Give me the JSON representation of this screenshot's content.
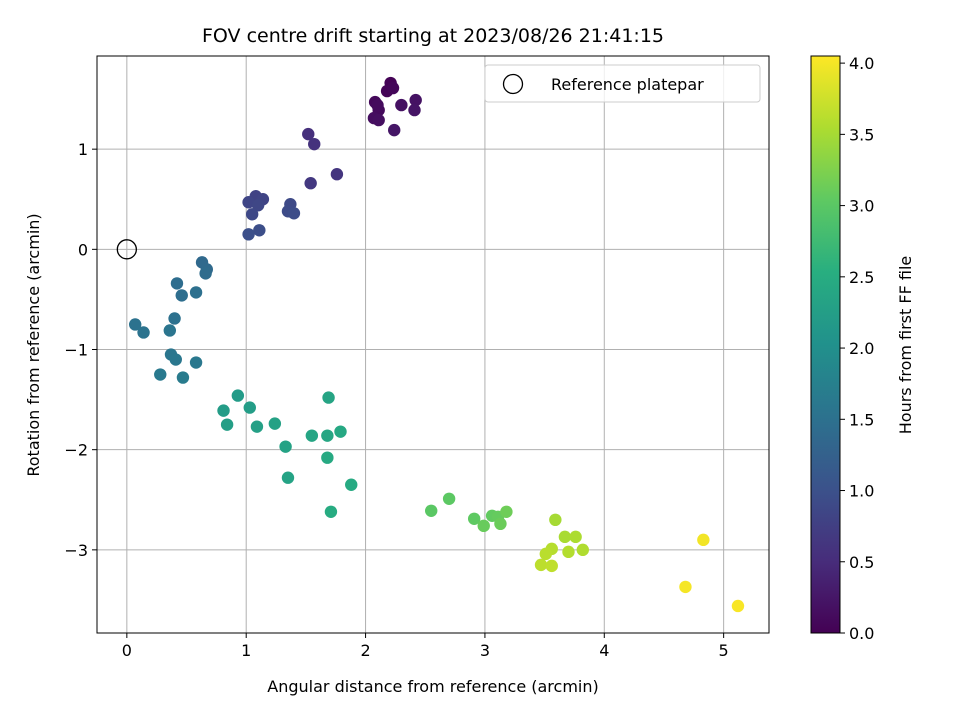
{
  "chart_data": {
    "type": "scatter",
    "title": "FOV centre drift starting at 2023/08/26 21:41:15",
    "xlabel": "Angular distance from reference (arcmin)",
    "ylabel": "Rotation from reference (arcmin)",
    "xlim": [
      -0.25,
      5.38
    ],
    "ylim": [
      -3.83,
      1.93
    ],
    "xticks": [
      0,
      1,
      2,
      3,
      4,
      5
    ],
    "xtick_labels": [
      "0",
      "1",
      "2",
      "3",
      "4",
      "5"
    ],
    "yticks": [
      1,
      0,
      -1,
      -2,
      -3
    ],
    "ytick_labels": [
      "1",
      "0",
      "−1",
      "−2",
      "−3"
    ],
    "grid": true,
    "legend": {
      "position": "top-right",
      "entries": [
        "Reference platepar"
      ]
    },
    "colorbar": {
      "label": "Hours from first FF file",
      "range": [
        0,
        4.05
      ],
      "ticks": [
        0,
        0.5,
        1,
        1.5,
        2,
        2.5,
        3,
        3.5,
        4
      ],
      "tick_labels": [
        "0.0",
        "0.5",
        "1.0",
        "1.5",
        "2.0",
        "2.5",
        "3.0",
        "3.5",
        "4.0"
      ],
      "colormap": "viridis"
    },
    "reference": {
      "x": 0,
      "y": 0
    },
    "points": [
      {
        "x": 2.21,
        "y": 1.66,
        "h": 0.02
      },
      {
        "x": 2.18,
        "y": 1.58,
        "h": 0.04
      },
      {
        "x": 2.23,
        "y": 1.61,
        "h": 0.06
      },
      {
        "x": 2.08,
        "y": 1.47,
        "h": 0.08
      },
      {
        "x": 2.11,
        "y": 1.39,
        "h": 0.1
      },
      {
        "x": 2.1,
        "y": 1.44,
        "h": 0.12
      },
      {
        "x": 2.07,
        "y": 1.31,
        "h": 0.14
      },
      {
        "x": 2.11,
        "y": 1.29,
        "h": 0.16
      },
      {
        "x": 2.3,
        "y": 1.44,
        "h": 0.18
      },
      {
        "x": 2.42,
        "y": 1.49,
        "h": 0.2
      },
      {
        "x": 2.41,
        "y": 1.39,
        "h": 0.22
      },
      {
        "x": 2.24,
        "y": 1.19,
        "h": 0.24
      },
      {
        "x": 1.52,
        "y": 1.15,
        "h": 0.55
      },
      {
        "x": 1.57,
        "y": 1.05,
        "h": 0.58
      },
      {
        "x": 1.76,
        "y": 0.75,
        "h": 0.62
      },
      {
        "x": 1.54,
        "y": 0.66,
        "h": 0.66
      },
      {
        "x": 1.08,
        "y": 0.53,
        "h": 0.8
      },
      {
        "x": 1.14,
        "y": 0.5,
        "h": 0.82
      },
      {
        "x": 1.02,
        "y": 0.47,
        "h": 0.84
      },
      {
        "x": 1.1,
        "y": 0.44,
        "h": 0.86
      },
      {
        "x": 1.05,
        "y": 0.35,
        "h": 0.88
      },
      {
        "x": 1.37,
        "y": 0.45,
        "h": 0.9
      },
      {
        "x": 1.35,
        "y": 0.38,
        "h": 0.92
      },
      {
        "x": 1.4,
        "y": 0.36,
        "h": 0.94
      },
      {
        "x": 1.11,
        "y": 0.19,
        "h": 0.96
      },
      {
        "x": 1.02,
        "y": 0.15,
        "h": 0.98
      },
      {
        "x": 0.63,
        "y": -0.13,
        "h": 1.38
      },
      {
        "x": 0.67,
        "y": -0.2,
        "h": 1.4
      },
      {
        "x": 0.66,
        "y": -0.24,
        "h": 1.42
      },
      {
        "x": 0.42,
        "y": -0.34,
        "h": 1.44
      },
      {
        "x": 0.46,
        "y": -0.46,
        "h": 1.46
      },
      {
        "x": 0.58,
        "y": -0.43,
        "h": 1.48
      },
      {
        "x": 0.4,
        "y": -0.69,
        "h": 1.5
      },
      {
        "x": 0.07,
        "y": -0.75,
        "h": 1.52
      },
      {
        "x": 0.14,
        "y": -0.83,
        "h": 1.54
      },
      {
        "x": 0.36,
        "y": -0.81,
        "h": 1.56
      },
      {
        "x": 0.37,
        "y": -1.05,
        "h": 1.58
      },
      {
        "x": 0.41,
        "y": -1.1,
        "h": 1.6
      },
      {
        "x": 0.58,
        "y": -1.13,
        "h": 1.62
      },
      {
        "x": 0.28,
        "y": -1.25,
        "h": 1.64
      },
      {
        "x": 0.47,
        "y": -1.28,
        "h": 1.66
      },
      {
        "x": 0.93,
        "y": -1.46,
        "h": 2.2
      },
      {
        "x": 0.81,
        "y": -1.61,
        "h": 2.22
      },
      {
        "x": 1.03,
        "y": -1.58,
        "h": 2.24
      },
      {
        "x": 0.84,
        "y": -1.75,
        "h": 2.26
      },
      {
        "x": 1.09,
        "y": -1.77,
        "h": 2.28
      },
      {
        "x": 1.24,
        "y": -1.74,
        "h": 2.3
      },
      {
        "x": 1.33,
        "y": -1.97,
        "h": 2.32
      },
      {
        "x": 1.35,
        "y": -2.28,
        "h": 2.34
      },
      {
        "x": 1.69,
        "y": -1.48,
        "h": 2.36
      },
      {
        "x": 1.55,
        "y": -1.86,
        "h": 2.38
      },
      {
        "x": 1.68,
        "y": -1.86,
        "h": 2.4
      },
      {
        "x": 1.79,
        "y": -1.82,
        "h": 2.42
      },
      {
        "x": 1.68,
        "y": -2.08,
        "h": 2.44
      },
      {
        "x": 1.88,
        "y": -2.35,
        "h": 2.46
      },
      {
        "x": 1.71,
        "y": -2.62,
        "h": 2.48
      },
      {
        "x": 2.55,
        "y": -2.61,
        "h": 3.0
      },
      {
        "x": 2.7,
        "y": -2.49,
        "h": 3.02
      },
      {
        "x": 2.91,
        "y": -2.69,
        "h": 3.04
      },
      {
        "x": 3.06,
        "y": -2.66,
        "h": 3.06
      },
      {
        "x": 3.11,
        "y": -2.67,
        "h": 3.08
      },
      {
        "x": 2.99,
        "y": -2.76,
        "h": 3.1
      },
      {
        "x": 3.13,
        "y": -2.74,
        "h": 3.12
      },
      {
        "x": 3.18,
        "y": -2.62,
        "h": 3.14
      },
      {
        "x": 3.59,
        "y": -2.7,
        "h": 3.5
      },
      {
        "x": 3.67,
        "y": -2.87,
        "h": 3.52
      },
      {
        "x": 3.76,
        "y": -2.87,
        "h": 3.54
      },
      {
        "x": 3.82,
        "y": -3.0,
        "h": 3.56
      },
      {
        "x": 3.7,
        "y": -3.02,
        "h": 3.58
      },
      {
        "x": 3.56,
        "y": -2.99,
        "h": 3.6
      },
      {
        "x": 3.51,
        "y": -3.04,
        "h": 3.62
      },
      {
        "x": 3.47,
        "y": -3.15,
        "h": 3.64
      },
      {
        "x": 3.56,
        "y": -3.16,
        "h": 3.66
      },
      {
        "x": 4.83,
        "y": -2.9,
        "h": 3.98
      },
      {
        "x": 4.68,
        "y": -3.37,
        "h": 4.0
      },
      {
        "x": 5.12,
        "y": -3.56,
        "h": 4.02
      }
    ]
  }
}
